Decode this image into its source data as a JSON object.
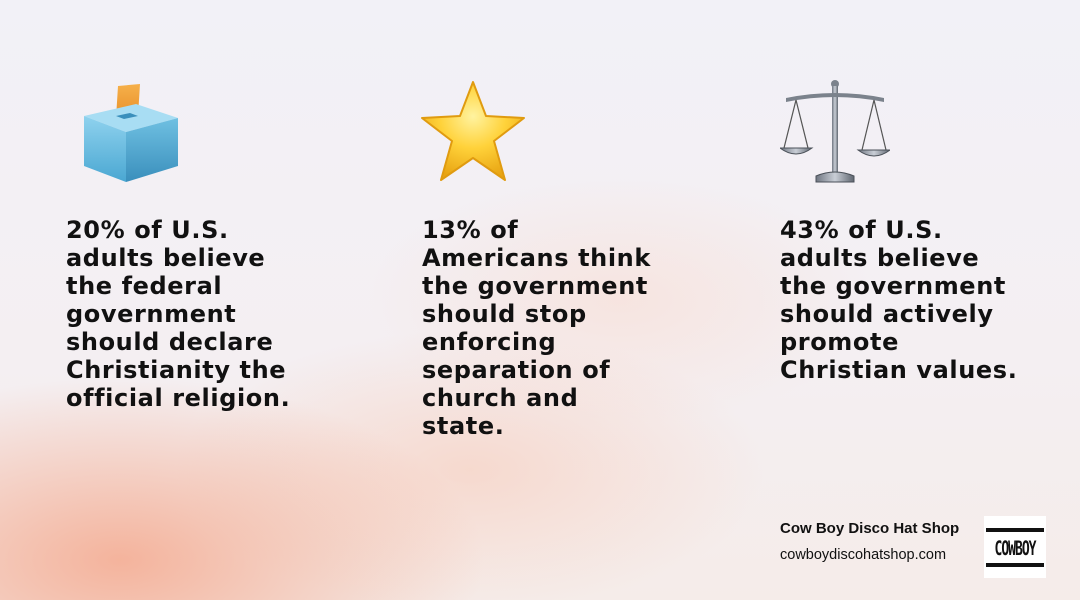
{
  "cards": [
    {
      "icon": "ballot-box-icon",
      "text": "20% of U.S. adults believe the federal government should declare Christianity the official religion."
    },
    {
      "icon": "star-icon",
      "text": "13% of Americans think the government should stop enforcing separation of church and state."
    },
    {
      "icon": "balance-scale-icon",
      "text": "43% of U.S. adults believe the government should actively promote Christian values."
    }
  ],
  "brand": {
    "name": "Cow Boy Disco Hat Shop",
    "url": "cowboydiscohatshop.com",
    "logo_text": "COWBOY"
  },
  "colors": {
    "text": "#111111",
    "peach": "#f3a082",
    "background": "#f1eff6",
    "star": "#f7c21e",
    "ballot": "#6fc0e0"
  }
}
